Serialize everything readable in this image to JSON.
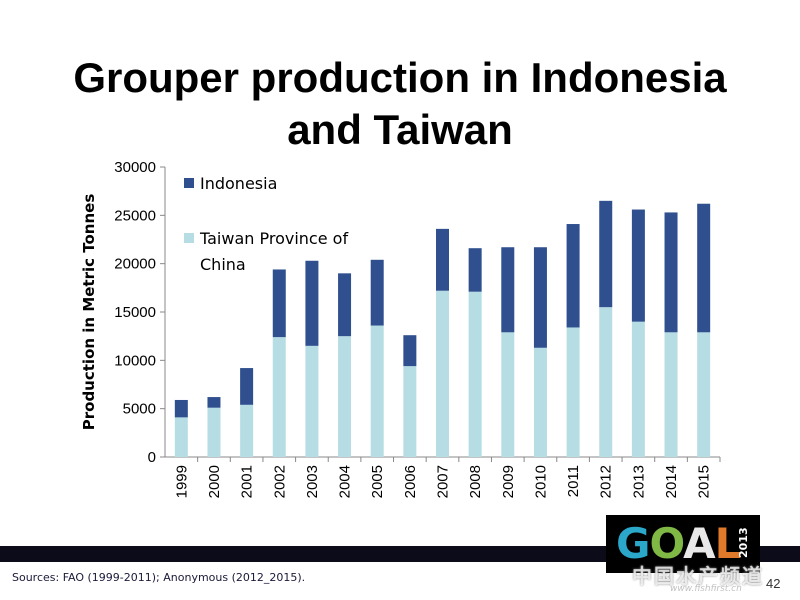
{
  "slide": {
    "title_line1": "Grouper production in Indonesia",
    "title_line2": "and Taiwan",
    "sources": "Sources: FAO (1999-2011); Anonymous (2012_2015).",
    "page_number": "42",
    "logo": {
      "letters": [
        "G",
        "O",
        "A",
        "L"
      ],
      "year": "2013"
    },
    "watermark": "中国水产频道",
    "watermark_url": "www.fishfirst.cn"
  },
  "colors": {
    "indonesia": "#2f4f8f",
    "taiwan": "#b7dde4",
    "axis": "#888888",
    "text": "#000000"
  },
  "chart_data": {
    "type": "bar",
    "stacked": true,
    "title": "",
    "xlabel": "",
    "ylabel": "Production in Metric Tonnes",
    "ylim": [
      0,
      30000
    ],
    "yticks": [
      0,
      5000,
      10000,
      15000,
      20000,
      25000,
      30000
    ],
    "grid": false,
    "legend_position": "top-left-inside",
    "categories": [
      "1999",
      "2000",
      "2001",
      "2002",
      "2003",
      "2004",
      "2005",
      "2006",
      "2007",
      "2008",
      "2009",
      "2010",
      "2011",
      "2012",
      "2013",
      "2014",
      "2015"
    ],
    "series": [
      {
        "name": "Taiwan Province of China",
        "legend_lines": [
          "Taiwan Province of",
          "China"
        ],
        "color": "#b7dde4",
        "values": [
          4100,
          5100,
          5400,
          12400,
          11500,
          12500,
          13600,
          9400,
          17200,
          17100,
          12900,
          11300,
          13400,
          15500,
          14000,
          12900,
          12900
        ]
      },
      {
        "name": "Indonesia",
        "legend_lines": [
          "Indonesia"
        ],
        "color": "#2f4f8f",
        "values": [
          1800,
          1100,
          3800,
          7000,
          8800,
          6500,
          6800,
          3200,
          6400,
          4500,
          8800,
          10400,
          10700,
          11000,
          11600,
          12400,
          13300
        ]
      }
    ]
  }
}
